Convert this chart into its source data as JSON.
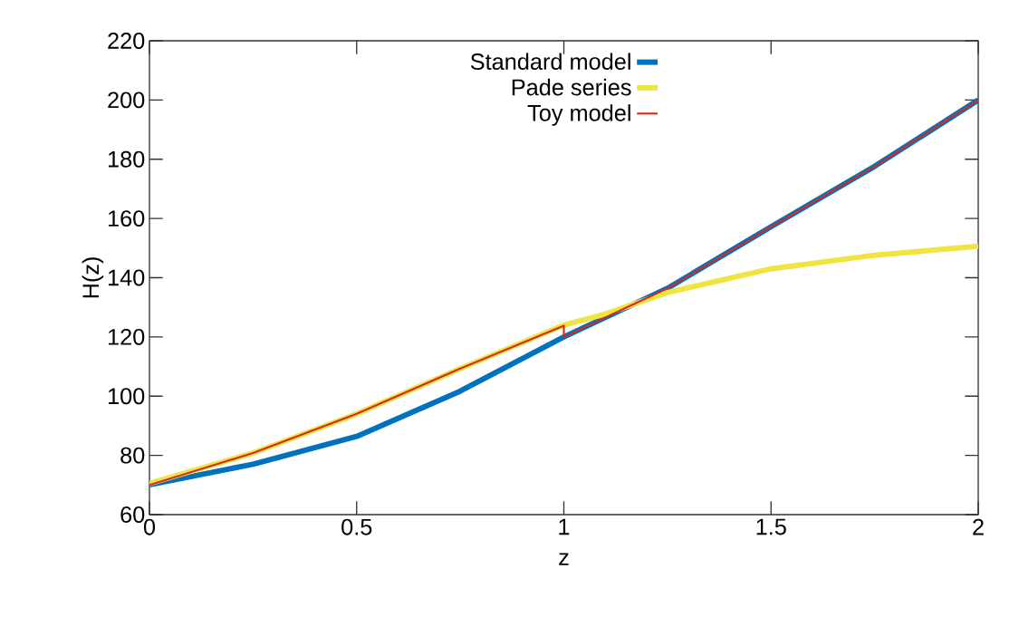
{
  "chart_data": {
    "type": "line",
    "xlabel": "z",
    "ylabel": "H(z)",
    "xlim": [
      0,
      2
    ],
    "ylim": [
      60,
      220
    ],
    "xticks": [
      0,
      0.5,
      1,
      1.5,
      2
    ],
    "yticks": [
      60,
      80,
      100,
      120,
      140,
      160,
      180,
      200,
      220
    ],
    "grid": false,
    "legend": "top",
    "marker": "none",
    "line_style": "solid",
    "series": [
      {
        "name": "Standard model",
        "color": "#0072bd",
        "x": [
          0,
          0.25,
          0.5,
          0.75,
          1,
          1.25,
          1.5,
          1.75,
          2
        ],
        "values": [
          70.1,
          77,
          86.4,
          101.7,
          120,
          136.4,
          157.2,
          177.6,
          200
        ]
      },
      {
        "name": "Pade series",
        "color": "#f0e442",
        "x": [
          0,
          0.25,
          0.5,
          0.75,
          1,
          1.1,
          1.25,
          1.5,
          1.75,
          2
        ],
        "values": [
          70.5,
          80.8,
          94,
          109.3,
          124,
          127.7,
          135,
          143,
          147.6,
          150.6
        ]
      },
      {
        "name": "Toy model",
        "color": "#d52b1e",
        "x": [
          0,
          0.25,
          0.5,
          0.75,
          1,
          1,
          1.25,
          1.5,
          1.75,
          2
        ],
        "values": [
          70,
          80.8,
          94,
          109.3,
          123.8,
          120,
          136.4,
          157.2,
          177.6,
          200
        ]
      }
    ]
  }
}
